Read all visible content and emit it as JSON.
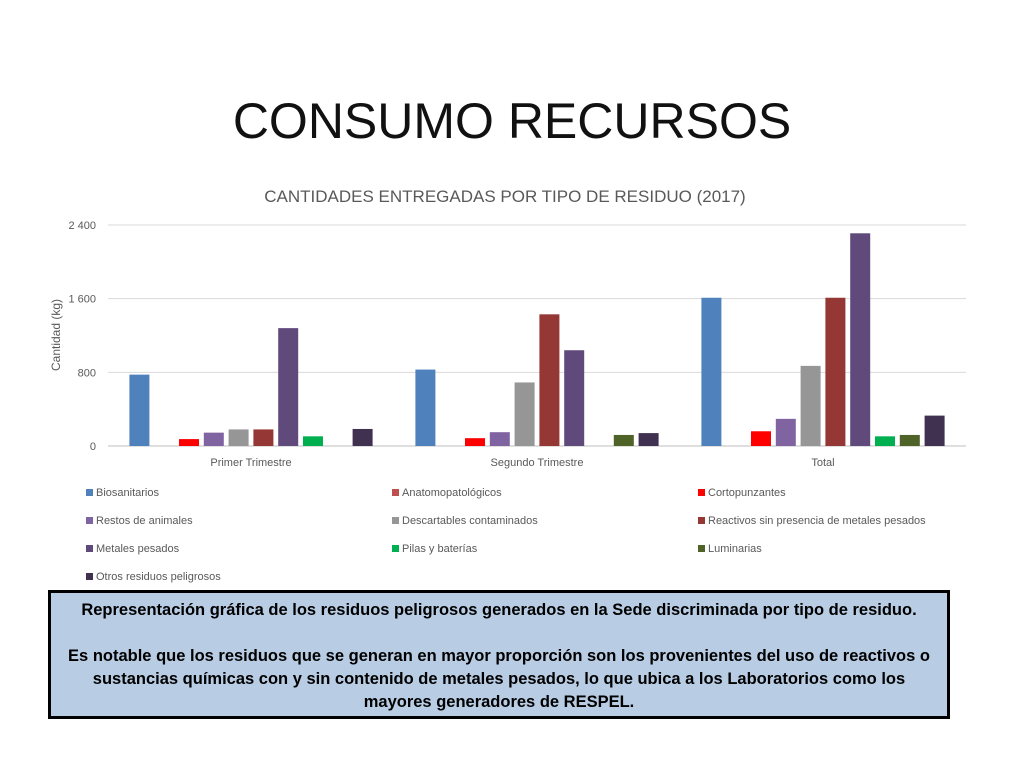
{
  "slide_title": "CONSUMO RECURSOS",
  "callout": {
    "line1": "Representación gráfica de los residuos peligrosos generados en la Sede discriminada por tipo de residuo.",
    "line2": "Es notable que los residuos que se generan en mayor proporción son los provenientes del uso de reactivos o sustancias químicas con y sin contenido de metales pesados, lo que ubica a los Laboratorios como los mayores generadores de RESPEL."
  },
  "chart_data": {
    "type": "bar",
    "title": "CANTIDADES ENTREGADAS POR TIPO DE RESIDUO (2017)",
    "xlabel": "",
    "ylabel": "Cantidad (kg)",
    "ylim": [
      0,
      2400
    ],
    "yticks": [
      0,
      800,
      1600,
      2400
    ],
    "ytick_labels": [
      "0",
      "800",
      "1 600",
      "2 400"
    ],
    "grid": true,
    "legend_position": "bottom",
    "categories": [
      "Primer Trimestre",
      "Segundo Trimestre",
      "Total"
    ],
    "series": [
      {
        "name": "Biosanitarios",
        "color": "#4f81bd",
        "values": [
          775,
          830,
          1610
        ]
      },
      {
        "name": "Anatomopatológicos",
        "color": "#c0504d",
        "values": [
          0,
          0,
          0
        ]
      },
      {
        "name": "Cortopunzantes",
        "color": "#ff0000",
        "values": [
          75,
          85,
          160
        ]
      },
      {
        "name": "Restos de animales",
        "color": "#8064a2",
        "values": [
          145,
          150,
          295
        ]
      },
      {
        "name": "Descartables contaminados",
        "color": "#969696",
        "values": [
          180,
          690,
          870
        ]
      },
      {
        "name": "Reactivos sin presencia de metales pesados",
        "color": "#953735",
        "values": [
          180,
          1430,
          1610
        ]
      },
      {
        "name": "Metales pesados",
        "color": "#604a7b",
        "values": [
          1280,
          1040,
          2310
        ]
      },
      {
        "name": "Pilas y baterías",
        "color": "#00b050",
        "values": [
          105,
          0,
          105
        ]
      },
      {
        "name": "Luminarias",
        "color": "#4f6228",
        "values": [
          0,
          120,
          120
        ]
      },
      {
        "name": "Otros residuos peligrosos",
        "color": "#403151",
        "values": [
          185,
          140,
          330
        ]
      }
    ]
  }
}
